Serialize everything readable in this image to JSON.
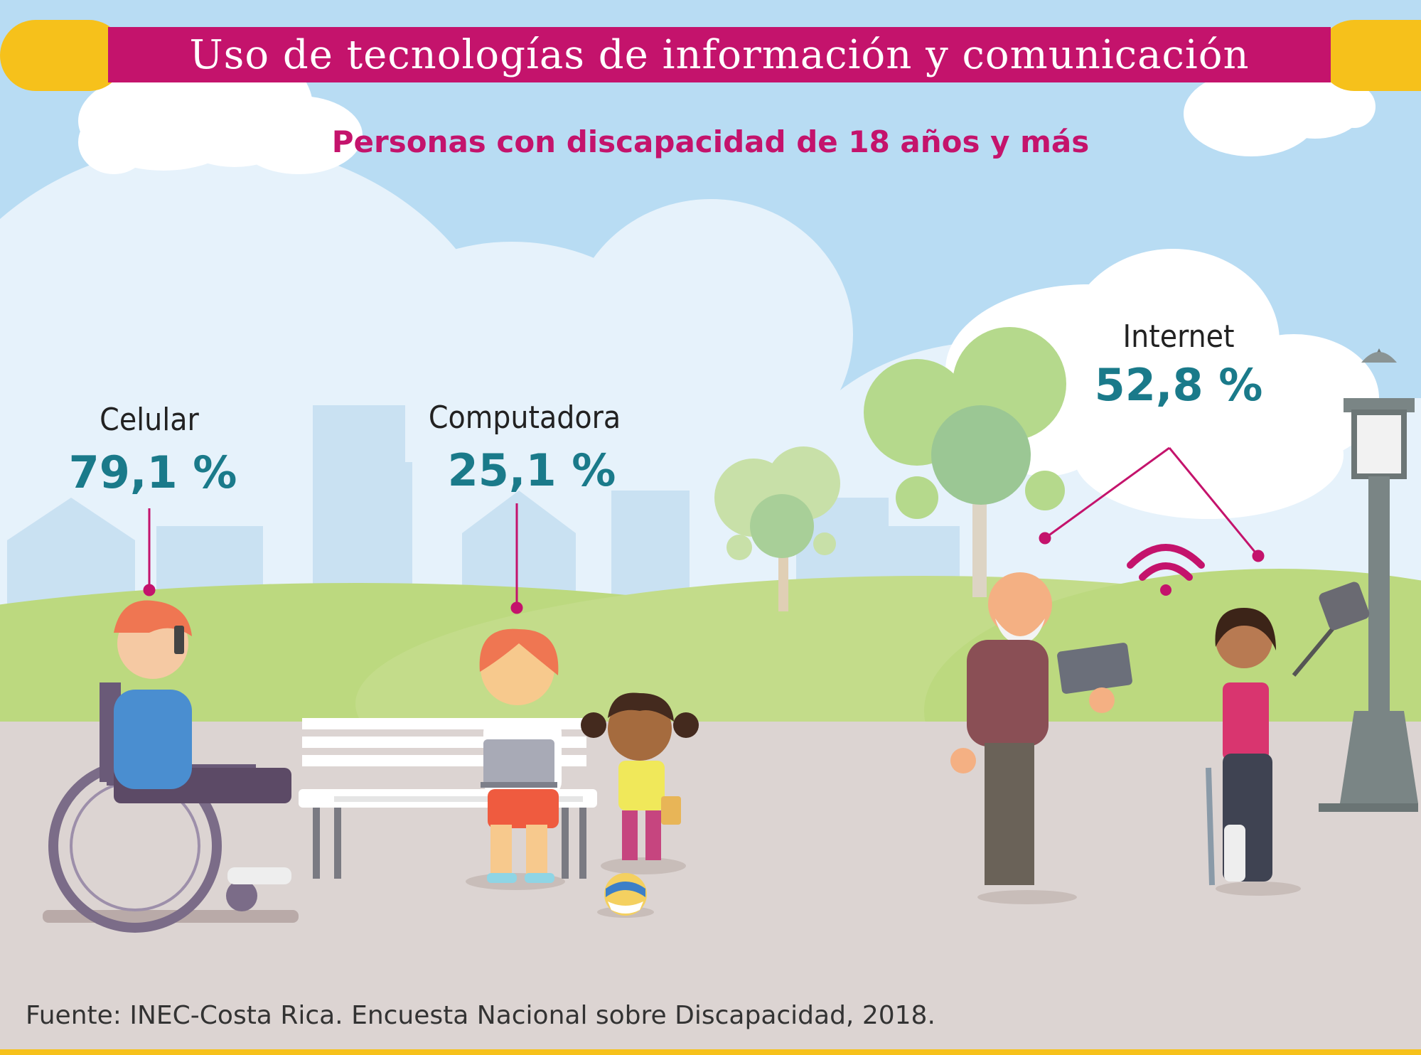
{
  "header": {
    "title": "Uso de tecnologías de información y comunicación",
    "subtitle": "Personas con discapacidad de 18 años y más"
  },
  "stats": {
    "celular": {
      "label": "Celular",
      "value": "79,1 %"
    },
    "computadora": {
      "label": "Computadora",
      "value": "25,1 %"
    },
    "internet": {
      "label": "Internet",
      "value": "52,8 %"
    }
  },
  "footer": {
    "source": "Fuente: INEC-Costa Rica. Encuesta Nacional sobre Discapacidad, 2018."
  },
  "colors": {
    "sky": "#b8dcf3",
    "title_bar": "#c4136c",
    "accent_yellow": "#f6c11b",
    "value_teal": "#1a7a8a",
    "grass": "#b9d77a",
    "ground": "#dcd4d2"
  }
}
